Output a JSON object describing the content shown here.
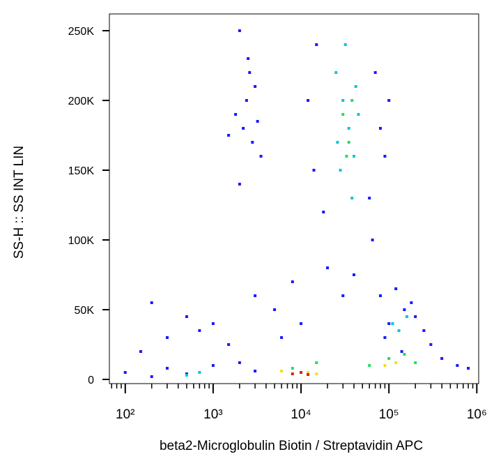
{
  "chart_data": {
    "type": "scatter",
    "x_label": "beta2-Microglobulin Biotin / Streptavidin APC",
    "y_label": "SS-H :: SS INT LIN",
    "x_log": true,
    "xlim": [
      66,
      1050000
    ],
    "ylim": [
      -3000,
      262000
    ],
    "xticks": [
      {
        "value": 100,
        "label": "10²"
      },
      {
        "value": 1000,
        "label": "10³"
      },
      {
        "value": 10000,
        "label": "10⁴"
      },
      {
        "value": 100000,
        "label": "10⁵"
      },
      {
        "value": 1000000,
        "label": "10⁶"
      }
    ],
    "xminorticks": [
      70,
      80,
      90,
      200,
      300,
      400,
      500,
      600,
      700,
      800,
      900,
      2000,
      3000,
      4000,
      5000,
      6000,
      7000,
      8000,
      9000,
      20000,
      30000,
      40000,
      50000,
      60000,
      70000,
      80000,
      90000,
      200000,
      300000,
      400000,
      500000,
      600000,
      700000,
      800000,
      900000
    ],
    "yticks": [
      0,
      {
        "value": 50000,
        "label": "50K"
      },
      {
        "value": 100000,
        "label": "100K"
      },
      {
        "value": 150000,
        "label": "150K"
      },
      {
        "value": 200000,
        "label": "200K"
      },
      {
        "value": 250000,
        "label": "250K"
      }
    ],
    "series": [
      {
        "color": "#1a1aff",
        "x": [
          2000,
          2500,
          3000,
          1800,
          2200,
          2800,
          3500,
          2400,
          2000,
          2600,
          3200,
          1500,
          15000,
          12000,
          70000,
          80000,
          18000,
          60000,
          90000,
          14000,
          100000,
          65000,
          1000,
          3000,
          5000,
          8000,
          20000,
          40000,
          300,
          500,
          150,
          200,
          700,
          1500,
          6000,
          10000,
          30000,
          80000,
          120000,
          150000,
          200000,
          100000,
          250000,
          90000,
          180000,
          300000,
          140000,
          100,
          200,
          300,
          500,
          1000,
          2000,
          400000,
          600000,
          800000,
          3000
        ],
        "y": [
          250000,
          230000,
          210000,
          190000,
          180000,
          170000,
          160000,
          200000,
          140000,
          220000,
          185000,
          175000,
          240000,
          200000,
          220000,
          180000,
          120000,
          130000,
          160000,
          150000,
          200000,
          100000,
          40000,
          60000,
          50000,
          70000,
          80000,
          75000,
          30000,
          45000,
          20000,
          55000,
          35000,
          25000,
          30000,
          40000,
          60000,
          60000,
          65000,
          50000,
          45000,
          40000,
          35000,
          30000,
          55000,
          25000,
          20000,
          5000,
          2000,
          8000,
          4000,
          10000,
          12000,
          15000,
          10000,
          8000,
          6000
        ]
      },
      {
        "color": "#00c8e0",
        "x": [
          25000,
          30000,
          35000,
          40000,
          28000,
          45000,
          32000,
          38000,
          26000,
          42000,
          110000,
          130000,
          160000,
          500,
          700
        ],
        "y": [
          220000,
          200000,
          180000,
          160000,
          150000,
          190000,
          240000,
          130000,
          170000,
          210000,
          40000,
          35000,
          45000,
          3000,
          5000
        ]
      },
      {
        "color": "#20e060",
        "x": [
          30000,
          35000,
          33000,
          38000,
          100000,
          150000,
          200000,
          60000,
          8000,
          15000
        ],
        "y": [
          190000,
          170000,
          160000,
          200000,
          15000,
          18000,
          12000,
          10000,
          8000,
          12000
        ]
      },
      {
        "color": "#f0e020",
        "x": [
          120000,
          90000,
          12000,
          6000,
          15000
        ],
        "y": [
          12000,
          10000,
          5000,
          6000,
          4000
        ]
      },
      {
        "color": "#e02010",
        "x": [
          8000,
          10000,
          12000
        ],
        "y": [
          4000,
          5000,
          3500
        ]
      }
    ]
  }
}
